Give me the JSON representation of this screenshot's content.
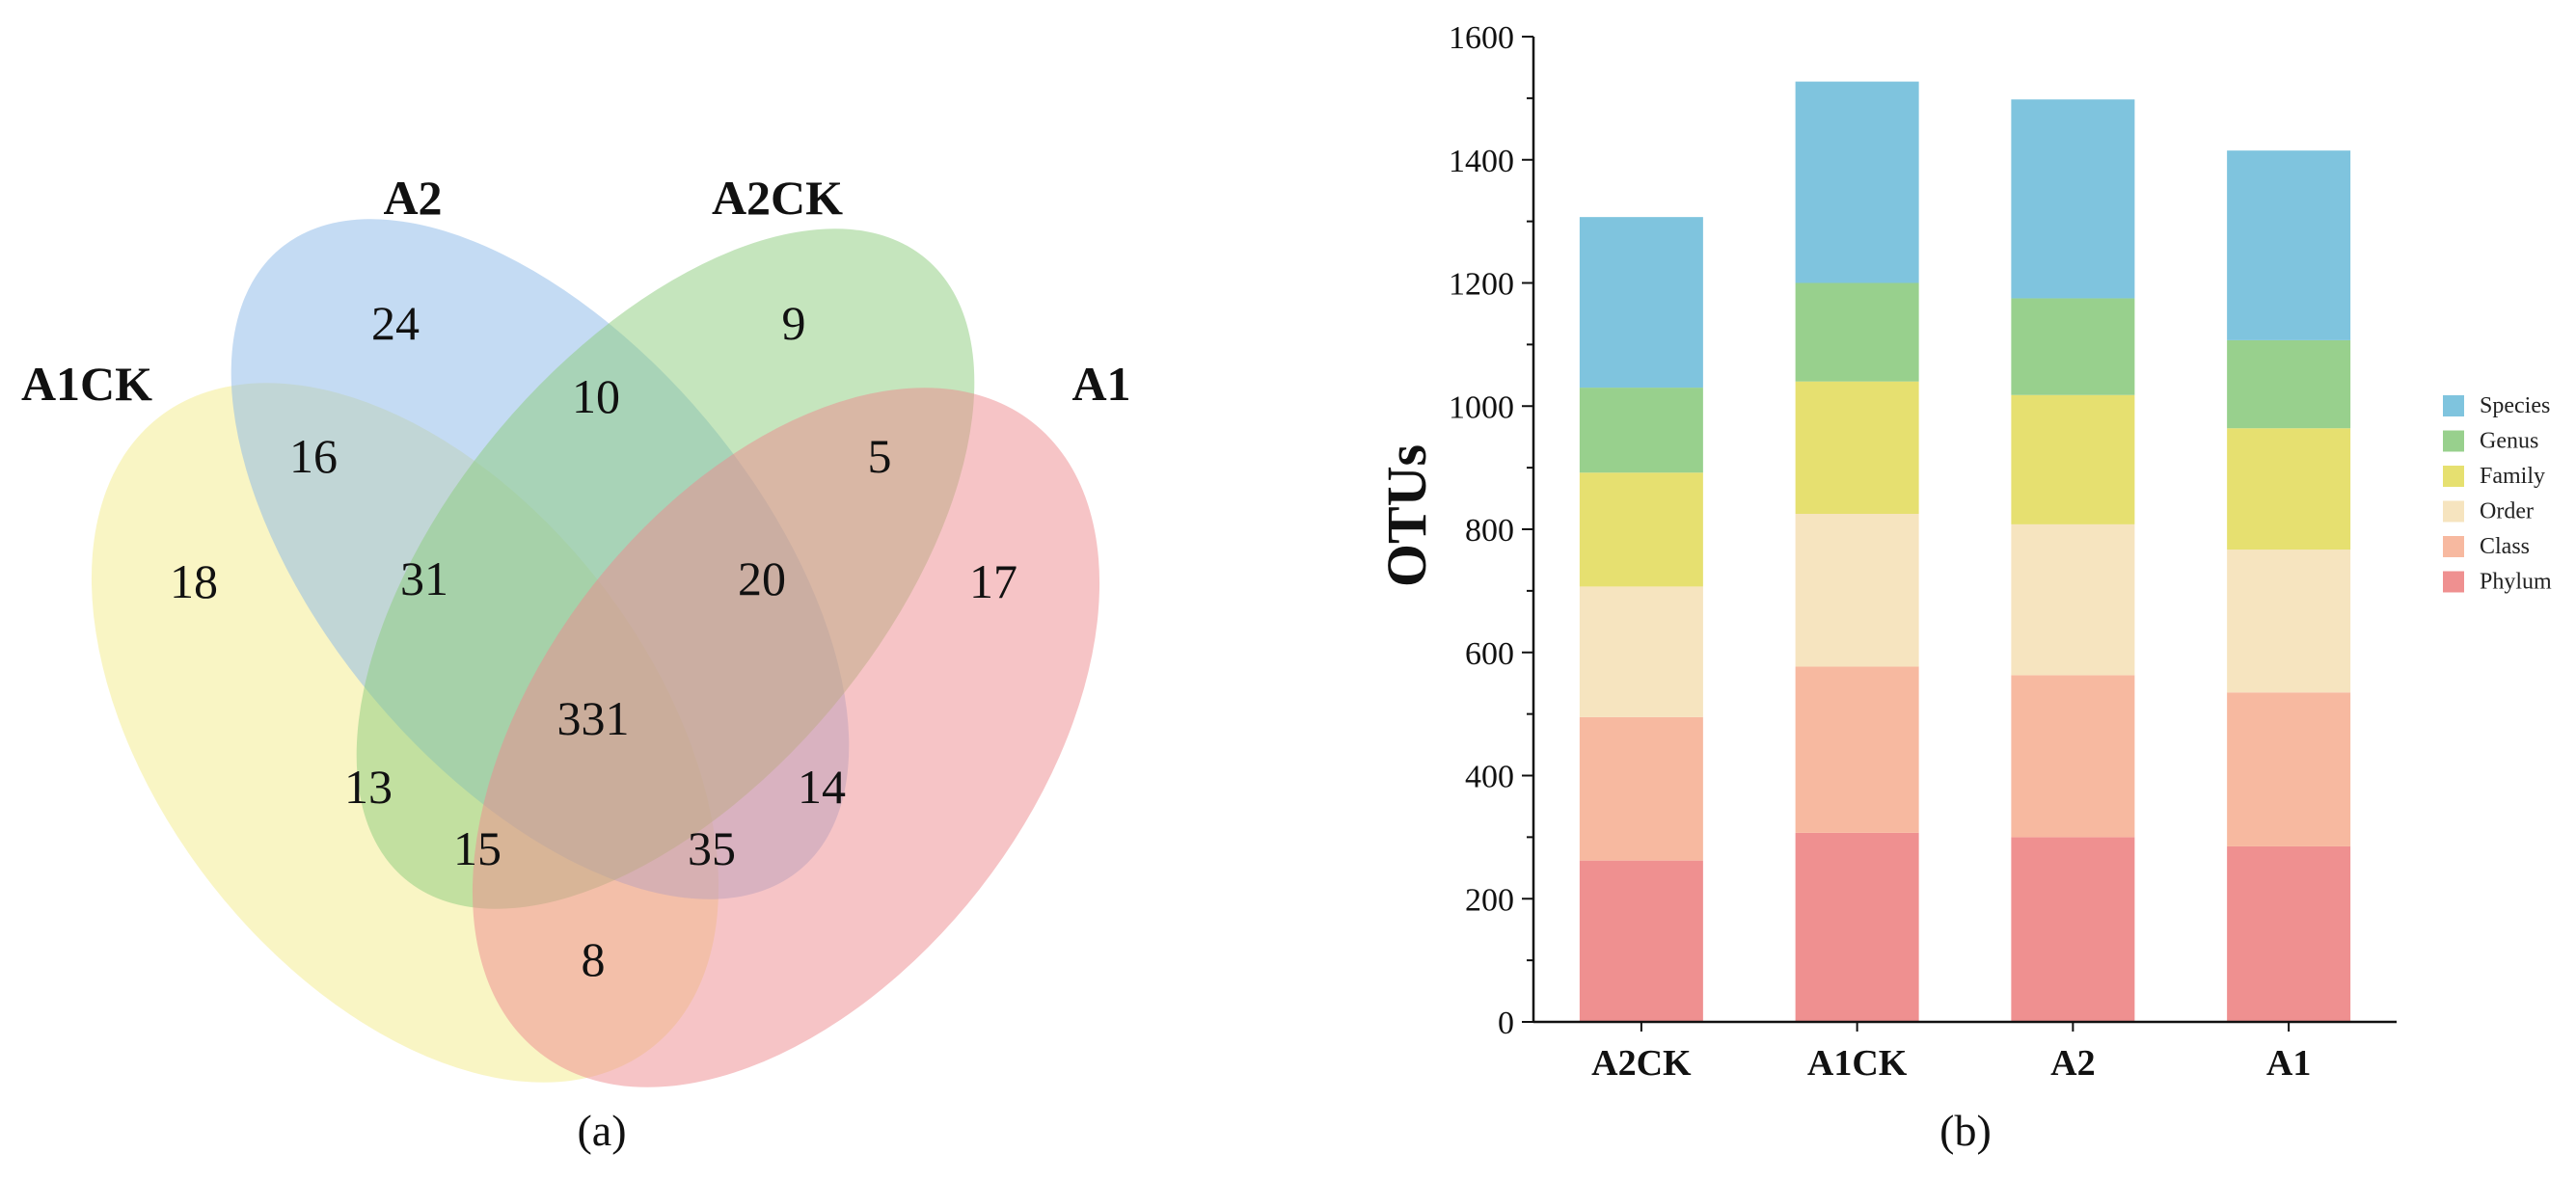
{
  "panels": {
    "a": "(a)",
    "b": "(b)"
  },
  "colors": {
    "A1CK": "#f3ec8a",
    "A2": "#8ab8e8",
    "A2CK": "#8ccb7c",
    "A1": "#ee8a8e",
    "Species": "#7fc4de",
    "Genus": "#98d08d",
    "Family": "#e6e070",
    "Order": "#f6e4bf",
    "Class": "#f7b9a0",
    "Phylum": "#ef9090"
  },
  "chart_data": [
    {
      "type": "venn",
      "title": "",
      "sets": [
        "A1CK",
        "A2",
        "A2CK",
        "A1"
      ],
      "regions": {
        "A1CK_only": 18,
        "A2_only": 24,
        "A2CK_only": 9,
        "A1_only": 17,
        "A1CK_A2": 16,
        "A2_A2CK": 10,
        "A2CK_A1": 5,
        "A1CK_A1": 8,
        "A1CK_A2CK": 13,
        "A2_A1": 14,
        "A1CK_A2_A2CK": 31,
        "A2_A2CK_A1": 20,
        "A1CK_A2CK_A1": 15,
        "A1CK_A2_A1": 35,
        "all": 331
      }
    },
    {
      "type": "bar",
      "stacked": true,
      "title": "",
      "xlabel": "",
      "ylabel": "OTUs",
      "ylim": [
        0,
        1600
      ],
      "yticks": [
        0,
        200,
        400,
        600,
        800,
        1000,
        1200,
        1400,
        1600
      ],
      "categories": [
        "A2CK",
        "A1CK",
        "A2",
        "A1"
      ],
      "series": [
        {
          "name": "Phylum",
          "values": [
            262,
            307,
            300,
            285
          ]
        },
        {
          "name": "Class",
          "values": [
            233,
            270,
            263,
            250
          ]
        },
        {
          "name": "Order",
          "values": [
            212,
            248,
            245,
            232
          ]
        },
        {
          "name": "Family",
          "values": [
            185,
            215,
            210,
            197
          ]
        },
        {
          "name": "Genus",
          "values": [
            138,
            160,
            157,
            143
          ]
        },
        {
          "name": "Species",
          "values": [
            277,
            327,
            323,
            308
          ]
        }
      ],
      "legend": [
        "Species",
        "Genus",
        "Family",
        "Order",
        "Class",
        "Phylum"
      ],
      "legend_position": "right"
    }
  ]
}
